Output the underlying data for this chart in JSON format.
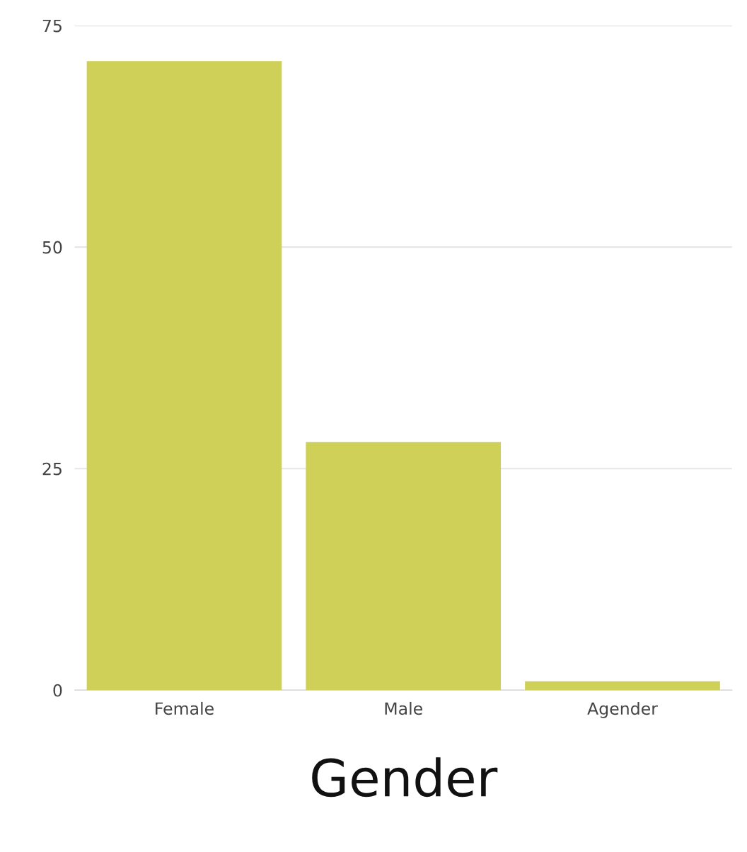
{
  "chart_data": {
    "type": "bar",
    "xlabel": "Gender",
    "categories": [
      "Female",
      "Male",
      "Agender"
    ],
    "values": [
      71,
      28,
      1
    ],
    "color": "#cfd057",
    "ylim": [
      0,
      75
    ],
    "yticks": [
      0,
      25,
      50,
      75
    ],
    "grid": "y",
    "legend": false
  }
}
